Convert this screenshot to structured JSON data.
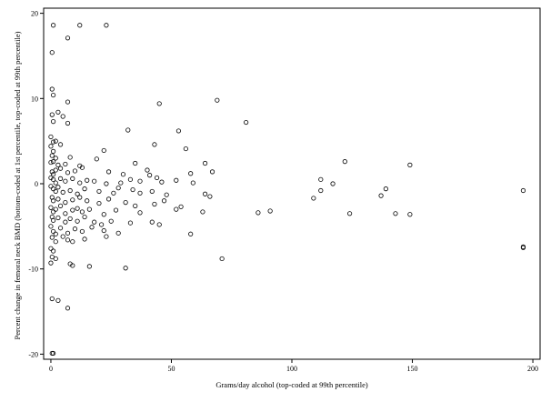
{
  "chart_data": {
    "type": "scatter",
    "xlabel": "Grams/day alcohol (top-coded at 99th percentile)",
    "ylabel": "Percent change in femoral neck BMD (bottom-coded at 1st percentile, top-coded at 99th percentile)",
    "xlim": [
      -3,
      203
    ],
    "ylim": [
      -20.6,
      20.6
    ],
    "x_ticks": [
      0,
      50,
      100,
      150,
      200
    ],
    "y_ticks": [
      -20,
      -10,
      0,
      10,
      20
    ],
    "grid": false,
    "marker": "open-circle",
    "points": [
      [
        1,
        18.6
      ],
      [
        7,
        17.1
      ],
      [
        12,
        18.6
      ],
      [
        23,
        18.6
      ],
      [
        0.5,
        15.4
      ],
      [
        0.5,
        11.1
      ],
      [
        1,
        10.4
      ],
      [
        7,
        9.6
      ],
      [
        45,
        9.4
      ],
      [
        69,
        9.8
      ],
      [
        0.5,
        8.1
      ],
      [
        3,
        8.4
      ],
      [
        5,
        7.9
      ],
      [
        1,
        7.3
      ],
      [
        7,
        7.1
      ],
      [
        81,
        7.2
      ],
      [
        32,
        6.3
      ],
      [
        53,
        6.2
      ],
      [
        0,
        5.5
      ],
      [
        1,
        4.9
      ],
      [
        2,
        5.0
      ],
      [
        0,
        4.4
      ],
      [
        1,
        3.8
      ],
      [
        4,
        4.6
      ],
      [
        43,
        4.6
      ],
      [
        56,
        4.1
      ],
      [
        22,
        3.9
      ],
      [
        0.5,
        3.3
      ],
      [
        2,
        3.0
      ],
      [
        8,
        3.1
      ],
      [
        0,
        2.5
      ],
      [
        1,
        2.6
      ],
      [
        3,
        2.2
      ],
      [
        6,
        2.3
      ],
      [
        12,
        2.1
      ],
      [
        19,
        2.9
      ],
      [
        35,
        2.4
      ],
      [
        40,
        1.6
      ],
      [
        64,
        2.4
      ],
      [
        122,
        2.6
      ],
      [
        149,
        2.2
      ],
      [
        0.5,
        1.4
      ],
      [
        1,
        1.1
      ],
      [
        2,
        1.6
      ],
      [
        4,
        1.8
      ],
      [
        7,
        1.3
      ],
      [
        10,
        1.5
      ],
      [
        13,
        1.9
      ],
      [
        24,
        1.4
      ],
      [
        30,
        1.1
      ],
      [
        41,
        1.0
      ],
      [
        58,
        1.2
      ],
      [
        67,
        1.4
      ],
      [
        0,
        0.7
      ],
      [
        1,
        0.5
      ],
      [
        2,
        0.1
      ],
      [
        4,
        0.6
      ],
      [
        6,
        0.3
      ],
      [
        9,
        0.6
      ],
      [
        12,
        0.1
      ],
      [
        15,
        0.4
      ],
      [
        18,
        0.3
      ],
      [
        23,
        0.0
      ],
      [
        29,
        0.1
      ],
      [
        33,
        0.5
      ],
      [
        37,
        0.3
      ],
      [
        44,
        0.7
      ],
      [
        46,
        0.2
      ],
      [
        52,
        0.4
      ],
      [
        59,
        0.1
      ],
      [
        112,
        0.5
      ],
      [
        117,
        0.0
      ],
      [
        0,
        -0.3
      ],
      [
        1,
        -0.6
      ],
      [
        2,
        -0.9
      ],
      [
        3,
        -0.4
      ],
      [
        5,
        -1.0
      ],
      [
        8,
        -0.8
      ],
      [
        11,
        -1.2
      ],
      [
        14,
        -0.6
      ],
      [
        20,
        -0.9
      ],
      [
        26,
        -1.1
      ],
      [
        28,
        -0.5
      ],
      [
        34,
        -0.7
      ],
      [
        37,
        -1.1
      ],
      [
        42,
        -0.9
      ],
      [
        48,
        -1.3
      ],
      [
        64,
        -1.2
      ],
      [
        66,
        -1.5
      ],
      [
        109,
        -1.7
      ],
      [
        112,
        -0.8
      ],
      [
        137,
        -1.4
      ],
      [
        139,
        -0.6
      ],
      [
        196,
        -0.8
      ],
      [
        0.5,
        -1.6
      ],
      [
        1,
        -2.0
      ],
      [
        3,
        -1.8
      ],
      [
        6,
        -2.2
      ],
      [
        9,
        -1.9
      ],
      [
        12,
        -1.6
      ],
      [
        15,
        -2.0
      ],
      [
        20,
        -2.3
      ],
      [
        24,
        -1.8
      ],
      [
        31,
        -2.2
      ],
      [
        35,
        -2.6
      ],
      [
        43,
        -2.4
      ],
      [
        47,
        -2.0
      ],
      [
        54,
        -2.7
      ],
      [
        0,
        -2.8
      ],
      [
        1,
        -3.3
      ],
      [
        2,
        -3.0
      ],
      [
        4,
        -2.6
      ],
      [
        6,
        -3.5
      ],
      [
        9,
        -3.1
      ],
      [
        11,
        -2.9
      ],
      [
        13,
        -3.3
      ],
      [
        16,
        -3.0
      ],
      [
        22,
        -3.6
      ],
      [
        27,
        -3.1
      ],
      [
        37,
        -3.4
      ],
      [
        52,
        -3.0
      ],
      [
        63,
        -3.3
      ],
      [
        86,
        -3.4
      ],
      [
        91,
        -3.2
      ],
      [
        124,
        -3.5
      ],
      [
        143,
        -3.5
      ],
      [
        149,
        -3.6
      ],
      [
        0.5,
        -3.9
      ],
      [
        1,
        -4.3
      ],
      [
        3,
        -4.0
      ],
      [
        6,
        -4.5
      ],
      [
        8,
        -4.1
      ],
      [
        11,
        -4.4
      ],
      [
        14,
        -3.9
      ],
      [
        18,
        -4.5
      ],
      [
        21,
        -4.8
      ],
      [
        25,
        -4.4
      ],
      [
        33,
        -4.6
      ],
      [
        42,
        -4.5
      ],
      [
        45,
        -4.8
      ],
      [
        0,
        -5.0
      ],
      [
        1,
        -5.6
      ],
      [
        2,
        -5.9
      ],
      [
        4,
        -5.2
      ],
      [
        7,
        -5.8
      ],
      [
        10,
        -5.3
      ],
      [
        13,
        -5.6
      ],
      [
        17,
        -5.1
      ],
      [
        22,
        -5.5
      ],
      [
        28,
        -5.8
      ],
      [
        58,
        -5.9
      ],
      [
        0.5,
        -6.3
      ],
      [
        2,
        -6.8
      ],
      [
        5,
        -6.2
      ],
      [
        7,
        -6.6
      ],
      [
        9,
        -6.8
      ],
      [
        14,
        -6.5
      ],
      [
        23,
        -6.2
      ],
      [
        0,
        -7.6
      ],
      [
        1,
        -7.9
      ],
      [
        196,
        -7.4
      ],
      [
        196,
        -7.5
      ],
      [
        0.5,
        -8.6
      ],
      [
        2,
        -8.8
      ],
      [
        8,
        -9.4
      ],
      [
        9,
        -9.6
      ],
      [
        16,
        -9.7
      ],
      [
        31,
        -9.9
      ],
      [
        71,
        -8.8
      ],
      [
        0,
        -9.3
      ],
      [
        0.5,
        -13.5
      ],
      [
        3,
        -13.7
      ],
      [
        7,
        -14.6
      ],
      [
        0.5,
        -19.9
      ],
      [
        1,
        -19.9
      ]
    ]
  }
}
